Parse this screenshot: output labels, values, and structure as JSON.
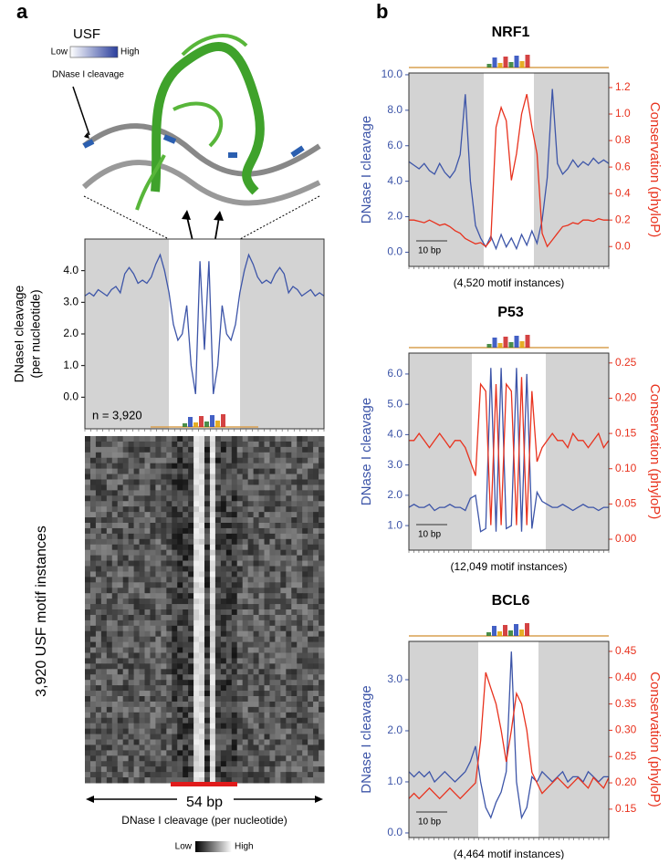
{
  "panel_labels": [
    "a",
    "b"
  ],
  "structure": {
    "title": "USF",
    "legend_low": "Low",
    "legend_high": "High",
    "label": "DNase I cleavage"
  },
  "heatmap": {
    "ylabel": "3,920 USF motif instances",
    "width_label": "54 bp",
    "xlabel": "DNase I cleavage (per nucleotide)",
    "legend_low": "Low",
    "legend_high": "High"
  },
  "chart_data": [
    {
      "type": "line",
      "ylabel": [
        "DNaseI cleavage",
        "(per nucleotide)"
      ],
      "annotation": "n = 3,920",
      "ylim": [
        -1.0,
        5.0
      ],
      "yticks": [
        {
          "value": 0,
          "label": "0.0"
        },
        {
          "value": 1,
          "label": "1.0"
        },
        {
          "value": 2,
          "label": "2.0"
        },
        {
          "value": 3,
          "label": "3.0"
        },
        {
          "value": 4,
          "label": "4.0"
        }
      ],
      "series": [
        {
          "color": "#3d55a8",
          "values": [
            3.2,
            3.3,
            3.2,
            3.4,
            3.3,
            3.2,
            3.4,
            3.5,
            3.3,
            3.9,
            4.1,
            3.9,
            3.6,
            3.7,
            3.6,
            3.8,
            4.2,
            4.5,
            4.0,
            3.3,
            2.3,
            1.8,
            2.0,
            2.9,
            1.0,
            0.1,
            4.3,
            1.5,
            4.3,
            0.1,
            1.0,
            2.9,
            2.0,
            1.8,
            2.3,
            3.3,
            4.0,
            4.5,
            4.2,
            3.8,
            3.6,
            3.7,
            3.6,
            3.9,
            4.1,
            3.9,
            3.3,
            3.5,
            3.4,
            3.2,
            3.3,
            3.4,
            3.2,
            3.3,
            3.2
          ]
        }
      ]
    },
    {
      "type": "line",
      "title": "NRF1",
      "ylabel": "DNase I cleavage",
      "y2label": "Conservation (phyloP)",
      "xlabel": "(4,520 motif instances)",
      "scale_bar": "10 bp",
      "ylim": [
        -0.8,
        10.1
      ],
      "yticks": [
        {
          "value": 0,
          "label": "0.0"
        },
        {
          "value": 2,
          "label": "2.0"
        },
        {
          "value": 4,
          "label": "4.0"
        },
        {
          "value": 6,
          "label": "6.0"
        },
        {
          "value": 8,
          "label": "8.0"
        },
        {
          "value": 10,
          "label": "10.0"
        }
      ],
      "y2lim": [
        -0.15,
        1.31
      ],
      "y2ticks": [
        {
          "value": 0,
          "label": "0.0"
        },
        {
          "value": 0.2,
          "label": "0.2"
        },
        {
          "value": 0.4,
          "label": "0.4"
        },
        {
          "value": 0.6,
          "label": "0.6"
        },
        {
          "value": 0.8,
          "label": "0.8"
        },
        {
          "value": 1,
          "label": "1.0"
        },
        {
          "value": 1.2,
          "label": "1.2"
        }
      ],
      "series": [
        {
          "color": "#3d55a8",
          "values": [
            5.1,
            4.9,
            4.7,
            5.0,
            4.6,
            4.4,
            5.0,
            4.5,
            4.2,
            4.6,
            5.5,
            8.9,
            4.0,
            1.5,
            0.8,
            0.3,
            0.9,
            0.2,
            1.0,
            0.3,
            0.8,
            0.2,
            1.0,
            0.4,
            1.2,
            0.5,
            1.8,
            4.2,
            9.2,
            5.0,
            4.4,
            4.7,
            5.2,
            4.8,
            5.1,
            4.9,
            5.3,
            5.0,
            5.2,
            5.0
          ]
        },
        {
          "color": "#e8321e",
          "axis": "y2",
          "values": [
            0.2,
            0.2,
            0.19,
            0.18,
            0.2,
            0.18,
            0.16,
            0.17,
            0.15,
            0.12,
            0.1,
            0.06,
            0.04,
            0.02,
            0.03,
            0.0,
            0.05,
            0.9,
            1.05,
            0.95,
            0.5,
            0.7,
            1.0,
            1.15,
            0.9,
            0.7,
            0.1,
            0.0,
            0.05,
            0.1,
            0.15,
            0.16,
            0.18,
            0.17,
            0.2,
            0.2,
            0.19,
            0.21,
            0.2,
            0.2
          ]
        }
      ]
    },
    {
      "type": "line",
      "title": "P53",
      "ylabel": "DNase I cleavage",
      "y2label": "Conservation (phyloP)",
      "xlabel": "(12,049 motif instances)",
      "scale_bar": "10 bp",
      "ylim": [
        0.19,
        6.69
      ],
      "yticks": [
        {
          "value": 1,
          "label": "1.0"
        },
        {
          "value": 2,
          "label": "2.0"
        },
        {
          "value": 3,
          "label": "3.0"
        },
        {
          "value": 4,
          "label": "4.0"
        },
        {
          "value": 5,
          "label": "5.0"
        },
        {
          "value": 6,
          "label": "6.0"
        }
      ],
      "y2lim": [
        -0.0155,
        0.264
      ],
      "y2ticks": [
        {
          "value": 0,
          "label": "0.00"
        },
        {
          "value": 0.05,
          "label": "0.05"
        },
        {
          "value": 0.1,
          "label": "0.10"
        },
        {
          "value": 0.15,
          "label": "0.15"
        },
        {
          "value": 0.2,
          "label": "0.20"
        },
        {
          "value": 0.25,
          "label": "0.25"
        }
      ],
      "series": [
        {
          "color": "#3d55a8",
          "values": [
            1.6,
            1.7,
            1.6,
            1.6,
            1.7,
            1.5,
            1.6,
            1.6,
            1.7,
            1.6,
            1.6,
            1.5,
            1.9,
            2.0,
            0.8,
            0.9,
            6.2,
            0.8,
            6.2,
            0.9,
            1.0,
            6.2,
            0.8,
            6.0,
            0.9,
            2.1,
            1.8,
            1.7,
            1.6,
            1.6,
            1.7,
            1.6,
            1.5,
            1.6,
            1.7,
            1.6,
            1.6,
            1.5,
            1.6,
            1.6
          ]
        },
        {
          "color": "#e8321e",
          "axis": "y2",
          "values": [
            0.14,
            0.14,
            0.15,
            0.14,
            0.13,
            0.14,
            0.15,
            0.14,
            0.13,
            0.14,
            0.14,
            0.13,
            0.11,
            0.09,
            0.22,
            0.21,
            0.02,
            0.22,
            0.02,
            0.22,
            0.21,
            0.02,
            0.23,
            0.02,
            0.21,
            0.11,
            0.13,
            0.14,
            0.15,
            0.14,
            0.14,
            0.13,
            0.15,
            0.14,
            0.14,
            0.13,
            0.14,
            0.15,
            0.13,
            0.14
          ]
        }
      ]
    },
    {
      "type": "line",
      "title": "BCL6",
      "ylabel": "DNase I cleavage",
      "y2label": "Conservation (phyloP)",
      "xlabel": "(4,464 motif instances)",
      "scale_bar": "10 bp",
      "ylim": [
        -0.09,
        3.75
      ],
      "yticks": [
        {
          "value": 0,
          "label": "0.0"
        },
        {
          "value": 1,
          "label": "1.0"
        },
        {
          "value": 2,
          "label": "2.0"
        },
        {
          "value": 3,
          "label": "3.0"
        }
      ],
      "y2lim": [
        0.096,
        0.469
      ],
      "y2ticks": [
        {
          "value": 0.15,
          "label": "0.15"
        },
        {
          "value": 0.2,
          "label": "0.20"
        },
        {
          "value": 0.25,
          "label": "0.25"
        },
        {
          "value": 0.3,
          "label": "0.30"
        },
        {
          "value": 0.35,
          "label": "0.35"
        },
        {
          "value": 0.4,
          "label": "0.40"
        },
        {
          "value": 0.45,
          "label": "0.45"
        }
      ],
      "series": [
        {
          "color": "#3d55a8",
          "values": [
            1.2,
            1.1,
            1.2,
            1.1,
            1.2,
            1.0,
            1.1,
            1.2,
            1.1,
            1.0,
            1.1,
            1.2,
            1.4,
            1.7,
            1.0,
            0.5,
            0.3,
            0.6,
            0.8,
            1.2,
            3.55,
            1.0,
            0.3,
            0.5,
            1.1,
            1.0,
            1.2,
            1.1,
            1.0,
            1.1,
            1.2,
            1.0,
            1.1,
            1.1,
            1.0,
            1.2,
            1.1,
            1.0,
            1.1,
            1.1
          ]
        },
        {
          "color": "#e8321e",
          "axis": "y2",
          "values": [
            0.17,
            0.18,
            0.17,
            0.18,
            0.19,
            0.18,
            0.17,
            0.18,
            0.19,
            0.18,
            0.17,
            0.18,
            0.19,
            0.2,
            0.28,
            0.41,
            0.38,
            0.35,
            0.3,
            0.24,
            0.3,
            0.37,
            0.35,
            0.3,
            0.22,
            0.2,
            0.18,
            0.19,
            0.2,
            0.21,
            0.2,
            0.19,
            0.2,
            0.21,
            0.2,
            0.19,
            0.21,
            0.2,
            0.19,
            0.21
          ]
        }
      ]
    }
  ]
}
